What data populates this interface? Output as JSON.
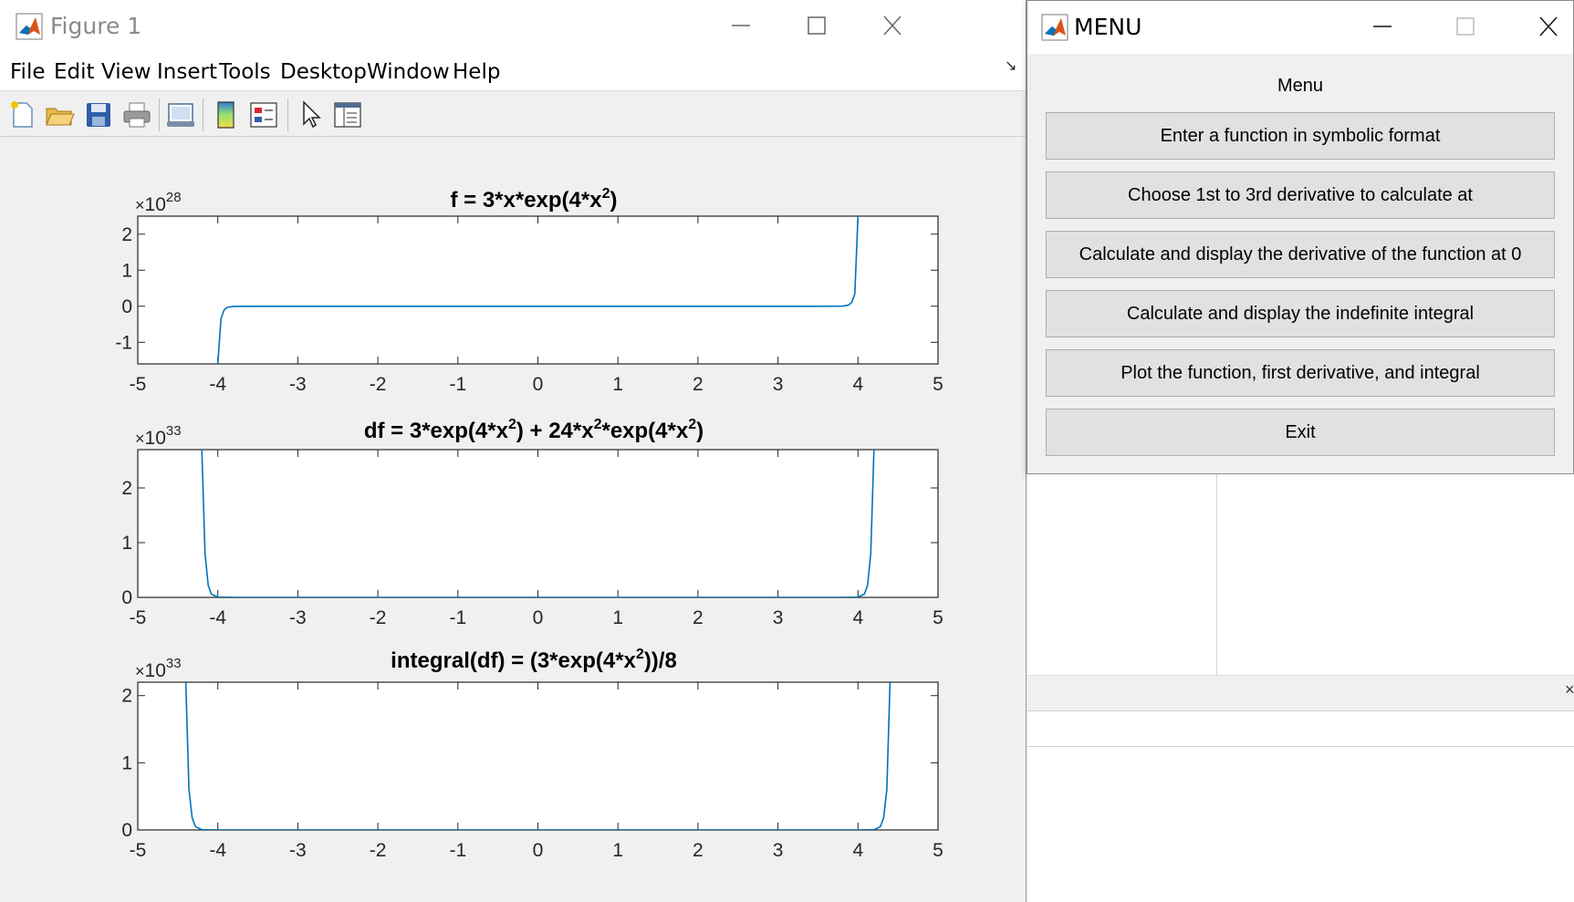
{
  "figure_window": {
    "title": "Figure 1",
    "menu": [
      "File",
      "Edit",
      "View",
      "Insert",
      "Tools",
      "Desktop",
      "Window",
      "Help"
    ],
    "toolbar": [
      "new-figure-icon",
      "open-file-icon",
      "save-icon",
      "print-icon",
      "link-plot-icon",
      "colorbar-icon",
      "legend-icon",
      "edit-plot-icon",
      "property-inspector-icon"
    ]
  },
  "menu_window": {
    "title": "MENU",
    "heading": "Menu",
    "buttons": [
      "Enter a function in symbolic format",
      "Choose 1st to 3rd derivative to calculate at",
      "Calculate and display the derivative of the function at 0",
      "Calculate and display the indefinite integral",
      "Plot the function, first derivative, and integral",
      "Exit"
    ]
  },
  "colors": {
    "line": "#0072bd",
    "figure_bg": "#f0f0f0",
    "axes_bg": "#ffffff",
    "button_bg": "#e1e1e1"
  },
  "chart_data": [
    {
      "type": "line",
      "title": "f = 3*x*exp(4*x^2)",
      "title_base": "f = 3*x*exp(4*x",
      "title_sup": "2",
      "title_tail": ")",
      "exponent_label": "10",
      "exponent_power": "28",
      "xlim": [
        -5,
        5
      ],
      "ylim": [
        -1.6,
        2.5
      ],
      "xticks": [
        -5,
        -4,
        -3,
        -2,
        -1,
        0,
        1,
        2,
        3,
        4,
        5
      ],
      "yticks": [
        -1,
        0,
        1,
        2
      ],
      "series": [
        {
          "x": [
            -4.0,
            -3.96,
            -3.92,
            -3.88,
            -3.8,
            -3.5,
            0,
            3.5,
            3.8,
            3.88,
            3.92,
            3.96,
            4.0
          ],
          "y": [
            -1.6,
            -0.34,
            -0.1,
            -0.03,
            -0.003,
            0,
            0,
            0,
            0.003,
            0.03,
            0.1,
            0.34,
            2.5
          ]
        }
      ]
    },
    {
      "type": "line",
      "title": "df = 3*exp(4*x^2) + 24*x^2*exp(4*x^2)",
      "exponent_label": "10",
      "exponent_power": "33",
      "xlim": [
        -5,
        5
      ],
      "ylim": [
        0,
        2.7
      ],
      "xticks": [
        -5,
        -4,
        -3,
        -2,
        -1,
        0,
        1,
        2,
        3,
        4,
        5
      ],
      "yticks": [
        0,
        1,
        2
      ],
      "series": [
        {
          "x": [
            -4.2,
            -4.16,
            -4.12,
            -4.08,
            -4.0,
            -3.8,
            0,
            3.8,
            4.0,
            4.08,
            4.12,
            4.16,
            4.2
          ],
          "y": [
            2.7,
            0.8,
            0.22,
            0.06,
            0.005,
            0,
            0,
            0,
            0.005,
            0.06,
            0.22,
            0.8,
            2.7
          ]
        }
      ]
    },
    {
      "type": "line",
      "title": "integral(df) = (3*exp(4*x^2))/8",
      "exponent_label": "10",
      "exponent_power": "33",
      "xlim": [
        -5,
        5
      ],
      "ylim": [
        0,
        2.2
      ],
      "xticks": [
        -5,
        -4,
        -3,
        -2,
        -1,
        0,
        1,
        2,
        3,
        4,
        5
      ],
      "yticks": [
        0,
        1,
        2
      ],
      "series": [
        {
          "x": [
            -4.4,
            -4.36,
            -4.32,
            -4.28,
            -4.2,
            -4.0,
            0,
            4.0,
            4.2,
            4.28,
            4.32,
            4.36,
            4.4
          ],
          "y": [
            2.2,
            0.6,
            0.18,
            0.05,
            0.004,
            0,
            0,
            0,
            0.004,
            0.05,
            0.18,
            0.6,
            2.2
          ]
        }
      ]
    }
  ]
}
